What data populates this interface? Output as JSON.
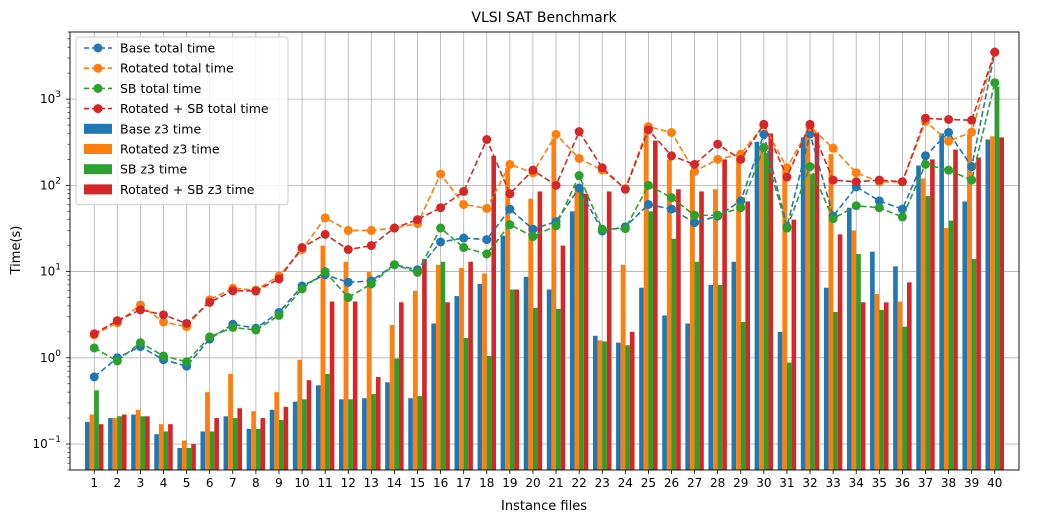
{
  "chart_data": {
    "type": "bar",
    "title": "VLSI SAT Benchmark",
    "xlabel": "Instance files",
    "ylabel": "Time(s)",
    "yscale": "log",
    "ylim": [
      0.05,
      6000
    ],
    "grid": true,
    "legend_position": "upper-left",
    "categories": [
      "1",
      "2",
      "3",
      "4",
      "5",
      "6",
      "7",
      "8",
      "9",
      "10",
      "11",
      "12",
      "13",
      "14",
      "15",
      "16",
      "17",
      "18",
      "19",
      "20",
      "21",
      "22",
      "23",
      "24",
      "25",
      "26",
      "27",
      "28",
      "29",
      "30",
      "31",
      "32",
      "33",
      "34",
      "35",
      "36",
      "37",
      "38",
      "39",
      "40"
    ],
    "bar_series": [
      {
        "name": "Base z3 time",
        "color": "#1f77b4",
        "values": [
          0.18,
          0.2,
          0.22,
          0.13,
          0.09,
          0.14,
          0.21,
          0.15,
          0.25,
          0.31,
          0.48,
          0.33,
          0.34,
          0.52,
          0.34,
          2.5,
          5.2,
          7.2,
          26,
          8.7,
          6.2,
          50,
          1.8,
          1.5,
          6.5,
          3.1,
          2.5,
          7.0,
          13,
          320,
          2.0,
          360,
          6.5,
          55,
          17,
          11.5,
          170,
          400,
          65,
          340
        ]
      },
      {
        "name": "Rotated z3 time",
        "color": "#ff7f0e",
        "values": [
          0.22,
          0.2,
          0.25,
          0.17,
          0.11,
          0.4,
          0.65,
          0.24,
          0.4,
          0.95,
          20,
          13,
          10,
          2.4,
          6,
          12,
          11,
          9.5,
          160,
          70,
          350,
          95,
          1.6,
          12,
          480,
          200,
          150,
          90,
          230,
          270,
          150,
          430,
          230,
          30,
          5.5,
          4.5,
          120,
          32,
          390,
          370
        ]
      },
      {
        "name": "SB z3 time",
        "color": "#2ca02c",
        "values": [
          0.42,
          0.21,
          0.21,
          0.14,
          0.09,
          0.14,
          0.2,
          0.15,
          0.19,
          0.33,
          0.65,
          0.33,
          0.38,
          0.98,
          0.36,
          13,
          1.7,
          1.05,
          6.2,
          3.8,
          3.7,
          95,
          1.55,
          1.4,
          50,
          24,
          13,
          7,
          2.6,
          240,
          0.88,
          135,
          3.4,
          16,
          3.6,
          2.3,
          75,
          39,
          14,
          1400
        ]
      },
      {
        "name": "Rotated + SB z3 time",
        "color": "#d62728",
        "values": [
          0.17,
          0.22,
          0.21,
          0.17,
          0.1,
          0.2,
          0.26,
          0.2,
          0.27,
          0.55,
          4.5,
          4.5,
          0.6,
          4.4,
          14,
          4.4,
          13,
          220,
          6.2,
          85,
          20,
          80,
          85,
          2.0,
          330,
          90,
          85,
          200,
          65,
          400,
          40,
          410,
          27,
          4.4,
          4.4,
          7.5,
          200,
          260,
          210,
          360
        ]
      }
    ],
    "series": [
      {
        "name": "Base total time",
        "color": "#1f77b4",
        "values": [
          0.6,
          1.0,
          1.35,
          0.95,
          0.8,
          1.65,
          2.45,
          2.2,
          3.35,
          6.8,
          9.2,
          7.5,
          7.8,
          12,
          10.5,
          22,
          24.5,
          23.5,
          53,
          31,
          38,
          93,
          29.5,
          33,
          60,
          53,
          37,
          44,
          66,
          390,
          33,
          395,
          44,
          96,
          66,
          53,
          220,
          410,
          165,
          3500
        ]
      },
      {
        "name": "Rotated total time",
        "color": "#ff7f0e",
        "values": [
          1.85,
          2.55,
          4.1,
          2.6,
          2.3,
          4.7,
          6.4,
          6.1,
          8.9,
          18,
          42,
          30,
          30,
          32,
          36,
          135,
          60,
          54,
          175,
          140,
          390,
          205,
          150,
          92,
          480,
          410,
          145,
          200,
          230,
          500,
          160,
          480,
          270,
          140,
          110,
          110,
          550,
          325,
          415,
          3500
        ]
      },
      {
        "name": "SB total time",
        "color": "#2ca02c",
        "values": [
          1.3,
          0.92,
          1.5,
          1.05,
          0.9,
          1.75,
          2.25,
          2.1,
          3.1,
          6.3,
          10,
          5,
          7.2,
          12,
          9.8,
          32,
          19,
          16,
          35,
          25.5,
          34,
          130,
          31,
          31.5,
          100,
          72,
          45,
          45,
          55,
          275,
          32,
          165,
          41,
          58,
          55,
          43,
          175,
          150,
          115,
          1550
        ]
      },
      {
        "name": "Rotated + SB total time",
        "color": "#d62728",
        "values": [
          1.9,
          2.7,
          3.6,
          3.15,
          2.5,
          4.4,
          6.0,
          5.95,
          8.2,
          19,
          27,
          18,
          20,
          32,
          40,
          55,
          85,
          340,
          80,
          150,
          100,
          420,
          160,
          90,
          440,
          220,
          175,
          300,
          200,
          510,
          125,
          510,
          115,
          110,
          115,
          110,
          600,
          580,
          570,
          3500
        ]
      }
    ],
    "y_ticks": [
      {
        "value": 0.1,
        "base": "10",
        "exp": "−1"
      },
      {
        "value": 1,
        "base": "10",
        "exp": "0"
      },
      {
        "value": 10,
        "base": "10",
        "exp": "1"
      },
      {
        "value": 100,
        "base": "10",
        "exp": "2"
      },
      {
        "value": 1000,
        "base": "10",
        "exp": "3"
      }
    ]
  }
}
